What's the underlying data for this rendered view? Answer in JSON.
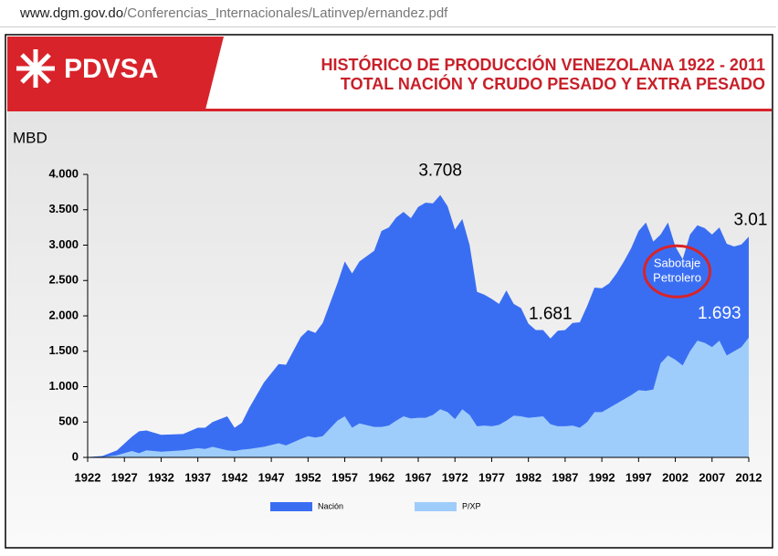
{
  "browser": {
    "url_host": "www.dgm.gov.do",
    "url_path": "/Conferencias_Internacionales/Latinvep/ernandez.pdf"
  },
  "logo": "PDVSA",
  "chart_data": {
    "type": "area",
    "title": "HISTÓRICO DE PRODUCCIÓN VENEZOLANA 1922 - 2011",
    "subtitle": "TOTAL NACIÓN Y CRUDO PESADO Y EXTRA PESADO",
    "y_label": "MBD",
    "x": [
      1922,
      1924,
      1926,
      1928,
      1929,
      1930,
      1932,
      1935,
      1937,
      1938,
      1939,
      1941,
      1942,
      1943,
      1944,
      1946,
      1948,
      1949,
      1951,
      1952,
      1953,
      1954,
      1956,
      1957,
      1958,
      1959,
      1961,
      1962,
      1963,
      1964,
      1965,
      1966,
      1967,
      1968,
      1969,
      1970,
      1971,
      1972,
      1973,
      1974,
      1975,
      1976,
      1977,
      1978,
      1979,
      1980,
      1981,
      1982,
      1983,
      1984,
      1985,
      1986,
      1987,
      1988,
      1989,
      1990,
      1991,
      1992,
      1993,
      1994,
      1995,
      1996,
      1997,
      1998,
      1999,
      2000,
      2001,
      2002,
      2003,
      2004,
      2005,
      2006,
      2007,
      2008,
      2009,
      2010,
      2011,
      2012
    ],
    "series": [
      {
        "name": "Nación",
        "color": "#3a6ef2",
        "values": [
          5,
          20,
          100,
          290,
          370,
          380,
          320,
          330,
          420,
          420,
          500,
          580,
          420,
          490,
          700,
          1060,
          1320,
          1310,
          1700,
          1800,
          1760,
          1900,
          2460,
          2770,
          2600,
          2770,
          2920,
          3200,
          3250,
          3390,
          3470,
          3380,
          3540,
          3600,
          3590,
          3708,
          3550,
          3220,
          3370,
          3000,
          2340,
          2300,
          2240,
          2170,
          2360,
          2170,
          2110,
          1890,
          1800,
          1800,
          1681,
          1790,
          1800,
          1900,
          1910,
          2140,
          2400,
          2390,
          2460,
          2600,
          2770,
          2960,
          3200,
          3320,
          3050,
          3150,
          3320,
          2980,
          2800,
          3150,
          3280,
          3240,
          3150,
          3250,
          3020,
          2980,
          3010,
          3120
        ]
      },
      {
        "name": "P/XP",
        "color": "#9fcdfb",
        "values": [
          0,
          5,
          30,
          90,
          60,
          100,
          80,
          100,
          130,
          120,
          150,
          100,
          90,
          110,
          120,
          150,
          200,
          170,
          260,
          300,
          280,
          300,
          520,
          580,
          420,
          480,
          430,
          430,
          450,
          520,
          580,
          550,
          560,
          560,
          600,
          680,
          640,
          540,
          680,
          600,
          440,
          450,
          440,
          460,
          520,
          590,
          580,
          560,
          570,
          580,
          470,
          440,
          440,
          450,
          420,
          500,
          640,
          640,
          700,
          760,
          820,
          880,
          950,
          940,
          960,
          1330,
          1440,
          1380,
          1300,
          1500,
          1650,
          1620,
          1560,
          1650,
          1440,
          1500,
          1560,
          1693
        ]
      }
    ],
    "xlim": [
      1922,
      2012
    ],
    "xticks": [
      1922,
      1927,
      1932,
      1937,
      1942,
      1947,
      1952,
      1957,
      1962,
      1967,
      1972,
      1977,
      1982,
      1987,
      1992,
      1997,
      2002,
      2007,
      2012
    ],
    "ylim": [
      0,
      4000
    ],
    "yticks": [
      0,
      {
        "value": 500,
        "label": "500"
      },
      {
        "value": 1000,
        "label": "1.000"
      },
      {
        "value": 1500,
        "label": "1.500"
      },
      {
        "value": 2000,
        "label": "2.000"
      },
      {
        "value": 2500,
        "label": "2.500"
      },
      {
        "value": 3000,
        "label": "3.000"
      },
      {
        "value": 3500,
        "label": "3.500"
      },
      {
        "value": 4000,
        "label": "4.000"
      }
    ],
    "annotations": [
      {
        "lines": [
          "3.708"
        ],
        "x": 1970,
        "y": 3708
      },
      {
        "lines": [
          "1.681"
        ],
        "x": 1985,
        "y": 1681
      },
      {
        "lines": [
          "3.01"
        ],
        "x": 2011,
        "y": 3010
      },
      {
        "lines": [
          "1.693"
        ],
        "x": 2008,
        "y": 1693
      },
      {
        "lines": [
          "Sabotaje",
          "Petrolero"
        ],
        "x": 2002,
        "y": 2500,
        "circle": "#d8232a"
      }
    ],
    "legend": "bottom"
  }
}
